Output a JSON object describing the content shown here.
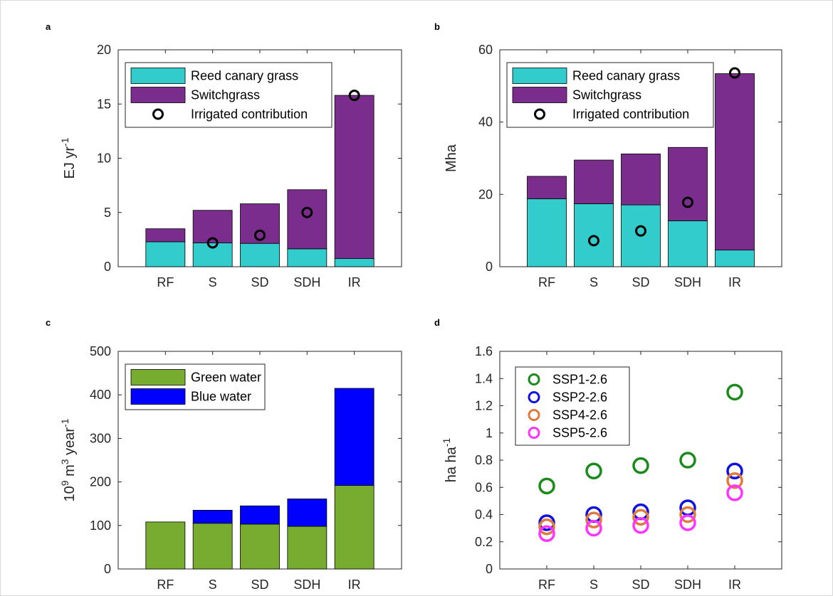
{
  "chart_data": [
    {
      "panel": "a",
      "type": "bar",
      "stacked": true,
      "categories": [
        "RF",
        "S",
        "SD",
        "SDH",
        "IR"
      ],
      "ylabel": "EJ yr",
      "ylabel_sup": "-1",
      "ylim": [
        0,
        20
      ],
      "yticks": [
        0,
        5,
        10,
        15,
        20
      ],
      "legend_position": "top-left",
      "series": [
        {
          "name": "Reed canary grass",
          "color": "#33cccc",
          "values": [
            2.3,
            2.2,
            2.15,
            1.65,
            0.75
          ]
        },
        {
          "name": "Switchgrass",
          "color": "#7b2d8e",
          "values": [
            1.2,
            3.0,
            3.65,
            5.45,
            15.05
          ]
        }
      ],
      "markers": {
        "name": "Irrigated contribution",
        "values": [
          null,
          2.2,
          2.9,
          5.0,
          15.8
        ]
      }
    },
    {
      "panel": "b",
      "type": "bar",
      "stacked": true,
      "categories": [
        "RF",
        "S",
        "SD",
        "SDH",
        "IR"
      ],
      "ylabel": "Mha",
      "ylim": [
        0,
        60
      ],
      "yticks": [
        0,
        20,
        40,
        60
      ],
      "legend_position": "top-left",
      "series": [
        {
          "name": "Reed canary grass",
          "color": "#33cccc",
          "values": [
            18.8,
            17.4,
            17.1,
            12.7,
            4.6
          ]
        },
        {
          "name": "Switchgrass",
          "color": "#7b2d8e",
          "values": [
            6.2,
            12.1,
            14.1,
            20.3,
            48.8
          ]
        }
      ],
      "markers": {
        "name": "Irrigated contribution",
        "values": [
          null,
          7.2,
          9.9,
          17.8,
          53.6
        ]
      }
    },
    {
      "panel": "c",
      "type": "bar",
      "stacked": true,
      "categories": [
        "RF",
        "S",
        "SD",
        "SDH",
        "IR"
      ],
      "ylabel_parts": [
        "10",
        "9",
        " m",
        "3",
        " year",
        "-1"
      ],
      "ylim": [
        0,
        500
      ],
      "yticks": [
        0,
        100,
        200,
        300,
        400,
        500
      ],
      "legend_position": "top-left",
      "series": [
        {
          "name": "Green water",
          "color": "#77ac30",
          "values": [
            108,
            105,
            103,
            98,
            192
          ]
        },
        {
          "name": "Blue water",
          "color": "#0000ff",
          "values": [
            0,
            30,
            42,
            63,
            223
          ]
        }
      ]
    },
    {
      "panel": "d",
      "type": "scatter",
      "categories": [
        "RF",
        "S",
        "SD",
        "SDH",
        "IR"
      ],
      "ylabel": "ha ha",
      "ylabel_sup": "-1",
      "ylim": [
        0,
        1.6
      ],
      "yticks": [
        0,
        0.2,
        0.4,
        0.6,
        0.8,
        1,
        1.2,
        1.4,
        1.6
      ],
      "ytick_labels": [
        "0",
        "0.2",
        "0.4",
        "0.6",
        "0.8",
        "1",
        "1.2",
        "1.4",
        "1.6"
      ],
      "legend_position": "top-left",
      "series": [
        {
          "name": "SSP1-2.6",
          "color": "#1a8a1a",
          "values": [
            0.61,
            0.72,
            0.76,
            0.8,
            1.3
          ]
        },
        {
          "name": "SSP2-2.6",
          "color": "#1010e0",
          "values": [
            0.34,
            0.4,
            0.42,
            0.45,
            0.72
          ]
        },
        {
          "name": "SSP4-2.6",
          "color": "#e07a3c",
          "values": [
            0.31,
            0.36,
            0.38,
            0.4,
            0.65
          ]
        },
        {
          "name": "SSP5-2.6",
          "color": "#ff33ff",
          "values": [
            0.26,
            0.3,
            0.32,
            0.34,
            0.56
          ]
        }
      ]
    }
  ]
}
